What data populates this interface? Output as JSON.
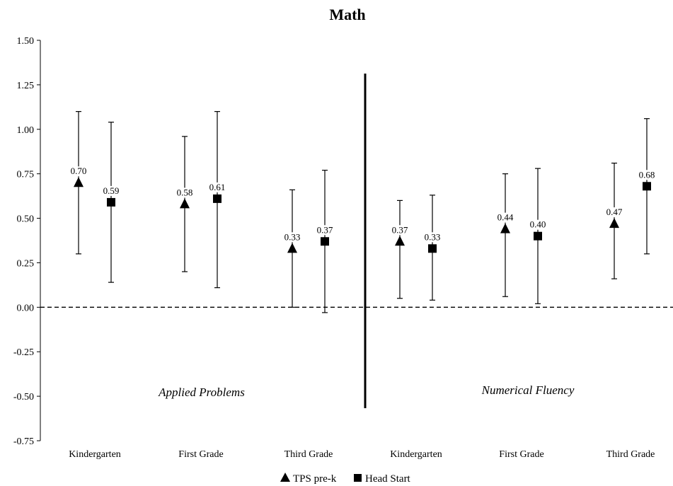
{
  "chart_data": {
    "type": "scatter",
    "title": "Math",
    "ylim": [
      -0.75,
      1.5
    ],
    "yticks": [
      "1.50",
      "1.25",
      "1.00",
      "0.75",
      "0.50",
      "0.25",
      "0.00",
      "-0.25",
      "-0.50",
      "-0.75"
    ],
    "ytick_values": [
      1.5,
      1.25,
      1.0,
      0.75,
      0.5,
      0.25,
      0.0,
      -0.25,
      -0.5,
      -0.75
    ],
    "categories": [
      "Kindergarten",
      "First Grade",
      "Third Grade",
      "Kindergarten",
      "First Grade",
      "Third Grade"
    ],
    "sections": [
      "Applied Problems",
      "Numerical Fluency"
    ],
    "reference_line": 0.0,
    "series": [
      {
        "name": "TPS pre-k",
        "marker": "triangle",
        "values": [
          0.7,
          0.58,
          0.33,
          0.37,
          0.44,
          0.47
        ],
        "labels": [
          "0.70",
          "0.58",
          "0.33",
          "0.37",
          "0.44",
          "0.47"
        ],
        "ci_low": [
          0.3,
          0.2,
          0.0,
          0.05,
          0.06,
          0.16
        ],
        "ci_high": [
          1.1,
          0.96,
          0.66,
          0.6,
          0.75,
          0.81
        ]
      },
      {
        "name": "Head Start",
        "marker": "square",
        "values": [
          0.59,
          0.61,
          0.37,
          0.33,
          0.4,
          0.68
        ],
        "labels": [
          "0.59",
          "0.61",
          "0.37",
          "0.33",
          "0.40",
          "0.68"
        ],
        "ci_low": [
          0.14,
          0.11,
          -0.03,
          0.04,
          0.02,
          0.3
        ],
        "ci_high": [
          1.04,
          1.1,
          0.77,
          0.63,
          0.78,
          1.06
        ]
      }
    ],
    "legend": [
      "TPS pre-k",
      "Head Start"
    ],
    "legend_position": "bottom",
    "grid": false,
    "colors": {
      "marker": "#000000",
      "line": "#000000"
    }
  }
}
